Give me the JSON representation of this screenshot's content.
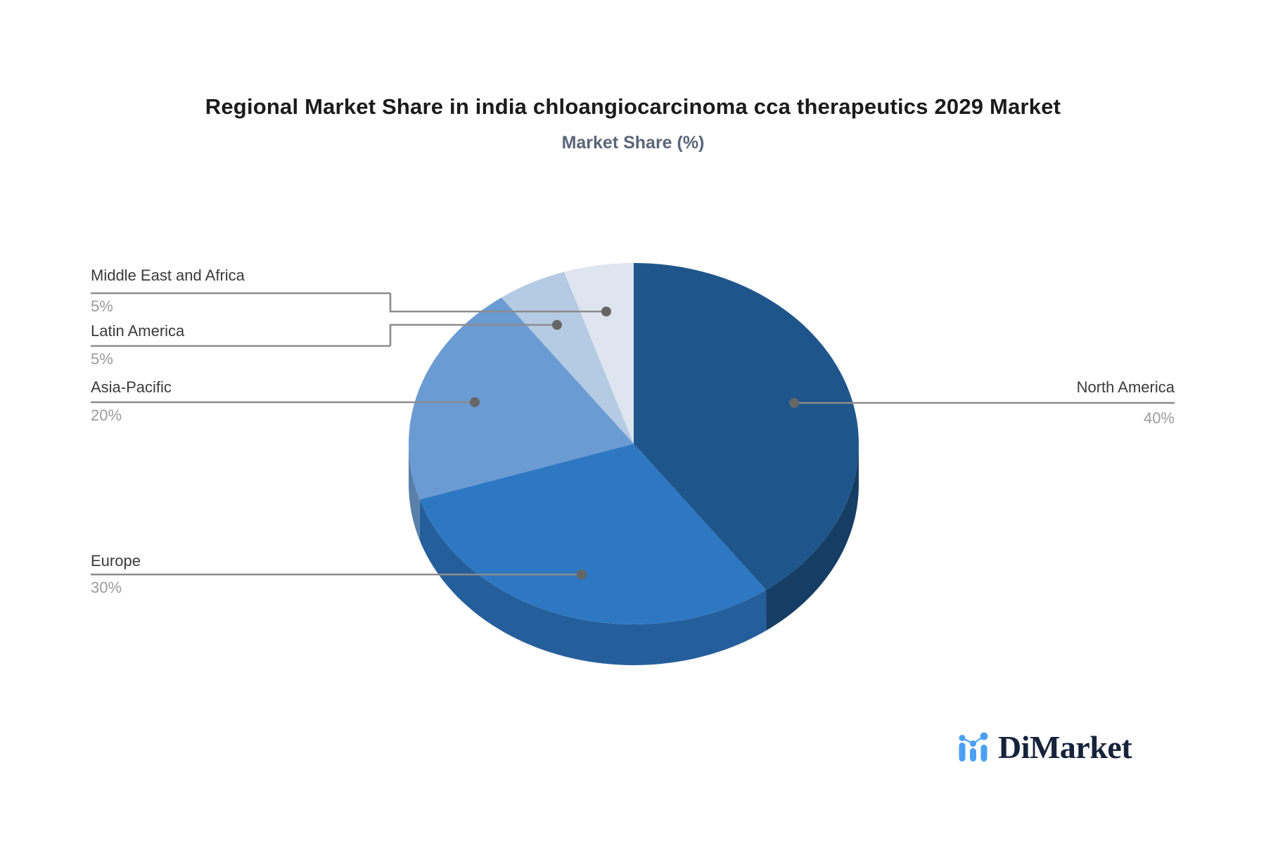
{
  "page": {
    "background_color": "#FFFFFF"
  },
  "header": {
    "title": "Regional Market Share in india chloangiocarcinoma cca therapeutics 2029 Market",
    "subtitle": "Market Share (%)",
    "title_color": "#1B1B1B",
    "subtitle_color": "#5A6577"
  },
  "chart_data": {
    "type": "pie",
    "style": "3d",
    "title": "Regional Market Share in india chloangiocarcinoma cca therapeutics 2029 Market",
    "subtitle": "Market Share (%)",
    "unit": "%",
    "direction": "clockwise",
    "start_angle_deg": 0,
    "legend_position": "callout-labels",
    "slices": [
      {
        "label": "North America",
        "value": 40,
        "pct_label": "40%",
        "color": "#1E568B",
        "side_color": "#163D64"
      },
      {
        "label": "Europe",
        "value": 30,
        "pct_label": "30%",
        "color": "#2E78C3",
        "side_color": "#255F9B"
      },
      {
        "label": "Asia-Pacific",
        "value": 20,
        "pct_label": "20%",
        "color": "#6B9BD3",
        "side_color": "#5880AA"
      },
      {
        "label": "Latin America",
        "value": 5,
        "pct_label": "5%",
        "color": "#B5CBE3",
        "side_color": "#93A9C4"
      },
      {
        "label": "Middle East and Africa",
        "value": 5,
        "pct_label": "5%",
        "color": "#DEE5EF",
        "side_color": "#B8C2D2"
      }
    ],
    "label_color": "#3A3A3A",
    "pct_color": "#9B9B9B",
    "leader_line_color": "#8C8C8C",
    "leader_dot_color": "#666666"
  },
  "logo": {
    "text": "DiMarket",
    "text_color": "#16233B",
    "icon": "bar-line-chart-icon",
    "icon_color": "#4BA0F4"
  }
}
